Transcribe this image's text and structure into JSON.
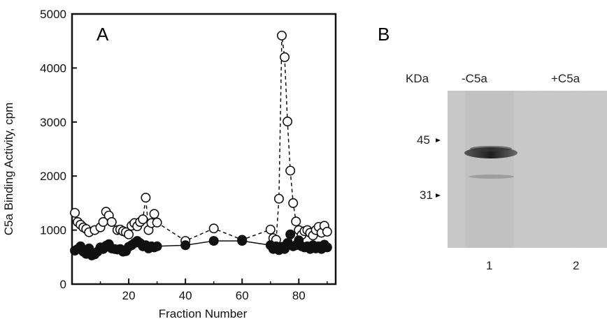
{
  "panel_a": {
    "label": "A"
  },
  "panel_b": {
    "label": "B",
    "unit_label": "KDa",
    "lane_headers": [
      "-C5a",
      "+C5a"
    ],
    "lane_numbers": [
      "1",
      "2"
    ],
    "markers": [
      "45",
      "31"
    ]
  },
  "chart_data": {
    "type": "line",
    "title": "",
    "xlabel": "Fraction Number",
    "ylabel": "C5a Binding Activity, cpm",
    "xlim": [
      0,
      93
    ],
    "ylim": [
      0,
      5000
    ],
    "xticks": [
      20,
      40,
      60,
      80
    ],
    "yticks": [
      0,
      1000,
      2000,
      3000,
      4000,
      5000
    ],
    "grid": false,
    "series": [
      {
        "marker": "open-circle",
        "line_style": "dashed",
        "x": [
          1,
          2,
          3,
          4,
          5,
          6,
          8,
          10,
          11,
          12,
          13,
          14,
          16,
          17,
          18,
          19,
          20,
          21,
          22,
          23,
          24,
          25,
          26,
          27,
          28,
          29,
          30,
          40,
          50,
          60,
          70,
          71,
          72,
          73,
          74,
          75,
          76,
          77,
          78,
          79,
          80,
          81,
          82,
          83,
          84,
          85,
          86,
          87,
          88,
          89,
          90
        ],
        "y": [
          1320,
          1150,
          1100,
          1050,
          1020,
          960,
          1000,
          1050,
          1150,
          1340,
          1270,
          1150,
          1000,
          1010,
          980,
          960,
          920,
          1080,
          1130,
          1070,
          1150,
          1200,
          1600,
          1000,
          1130,
          1300,
          1140,
          800,
          1030,
          820,
          1010,
          850,
          820,
          1580,
          4600,
          4200,
          3010,
          2100,
          1500,
          1160,
          1000,
          910,
          980,
          1000,
          950,
          900,
          1000,
          1060,
          950,
          1080,
          970
        ]
      },
      {
        "marker": "filled-circle",
        "line_style": "solid",
        "x": [
          1,
          2,
          3,
          4,
          5,
          6,
          7,
          8,
          9,
          10,
          11,
          12,
          13,
          14,
          15,
          16,
          17,
          18,
          19,
          20,
          21,
          22,
          23,
          24,
          25,
          26,
          27,
          28,
          29,
          30,
          40,
          50,
          60,
          70,
          71,
          72,
          73,
          74,
          75,
          76,
          77,
          78,
          79,
          80,
          81,
          82,
          83,
          84,
          85,
          86,
          87,
          88,
          89,
          90
        ],
        "y": [
          620,
          650,
          700,
          600,
          560,
          660,
          530,
          550,
          600,
          680,
          650,
          710,
          740,
          660,
          650,
          640,
          650,
          600,
          610,
          690,
          720,
          760,
          800,
          760,
          700,
          720,
          660,
          700,
          680,
          700,
          720,
          800,
          800,
          720,
          650,
          700,
          630,
          690,
          650,
          760,
          920,
          700,
          720,
          810,
          700,
          680,
          700,
          650,
          720,
          660,
          700,
          650,
          730,
          680
        ]
      }
    ]
  }
}
